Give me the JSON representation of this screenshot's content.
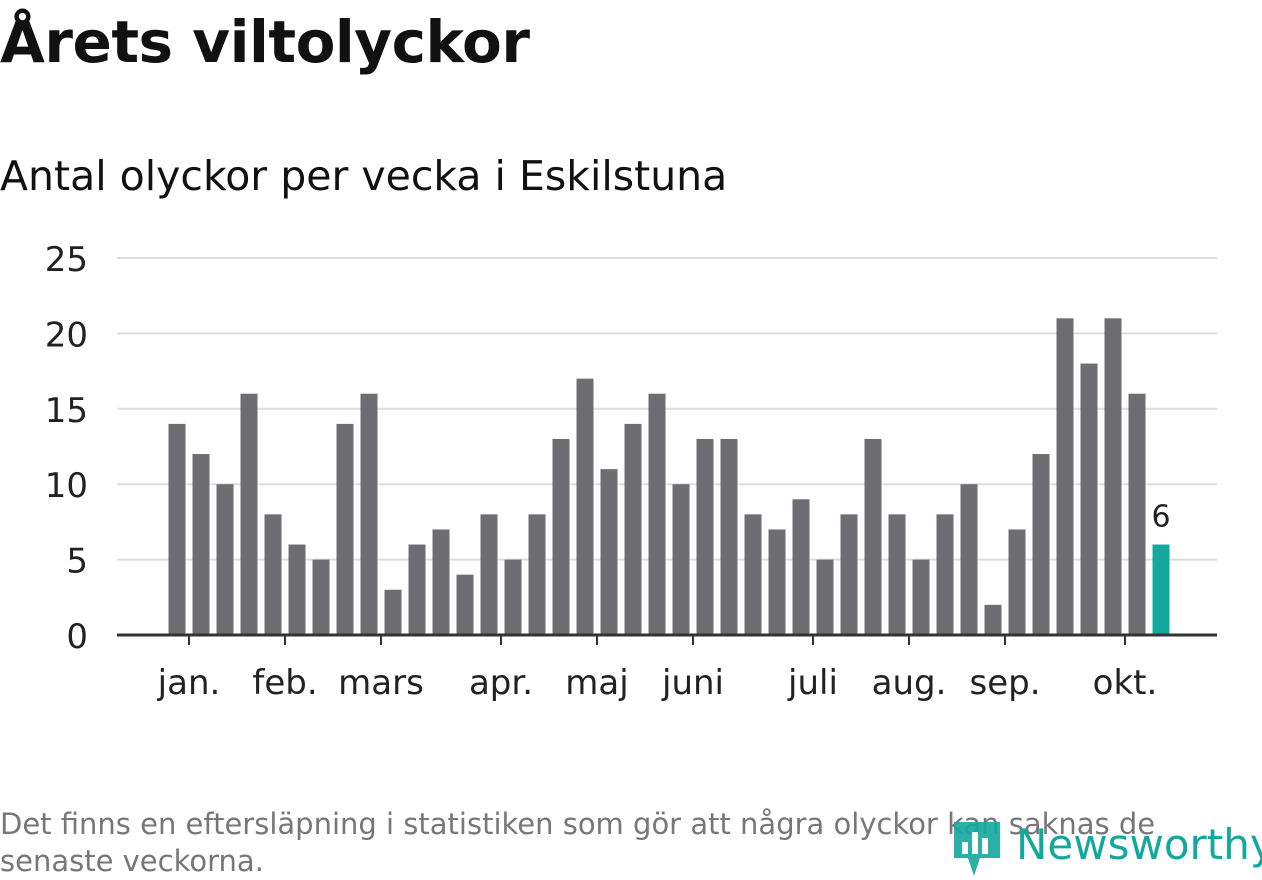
{
  "title": "Årets viltolyckor",
  "subtitle": "Antal olyckor per vecka i Eskilstuna",
  "footnote": "Det finns en eftersläpning i statistiken som gör att några olyckor kan saknas de senaste veckorna.",
  "brand": {
    "name": "Newsworthy",
    "color": "#13a89e",
    "icon": "bar-chart-pin-icon"
  },
  "colors": {
    "bar": "#6e6d72",
    "highlight": "#13a89e",
    "grid": "#dddddd",
    "axis": "#333333"
  },
  "chart_data": {
    "type": "bar",
    "title": "Årets viltolyckor",
    "subtitle": "Antal olyckor per vecka i Eskilstuna",
    "xlabel": "",
    "ylabel": "",
    "ylim": [
      0,
      25
    ],
    "yticks": [
      0,
      5,
      10,
      15,
      20,
      25
    ],
    "grid": true,
    "values": [
      14,
      12,
      10,
      16,
      8,
      6,
      5,
      14,
      16,
      3,
      6,
      7,
      4,
      8,
      5,
      8,
      13,
      17,
      11,
      14,
      16,
      10,
      13,
      13,
      8,
      7,
      9,
      5,
      8,
      13,
      8,
      5,
      8,
      10,
      2,
      7,
      12,
      21,
      18,
      21,
      16,
      6
    ],
    "month_labels": [
      {
        "label": "jan.",
        "bar_index": 0.5
      },
      {
        "label": "feb.",
        "bar_index": 4.5
      },
      {
        "label": "mars",
        "bar_index": 8.5
      },
      {
        "label": "apr.",
        "bar_index": 13.5
      },
      {
        "label": "maj",
        "bar_index": 17.5
      },
      {
        "label": "juni",
        "bar_index": 21.5
      },
      {
        "label": "juli",
        "bar_index": 26.5
      },
      {
        "label": "aug.",
        "bar_index": 30.5
      },
      {
        "label": "sep.",
        "bar_index": 34.5
      },
      {
        "label": "okt.",
        "bar_index": 39.5
      }
    ],
    "highlight_index": 41,
    "highlight_label": "6"
  }
}
